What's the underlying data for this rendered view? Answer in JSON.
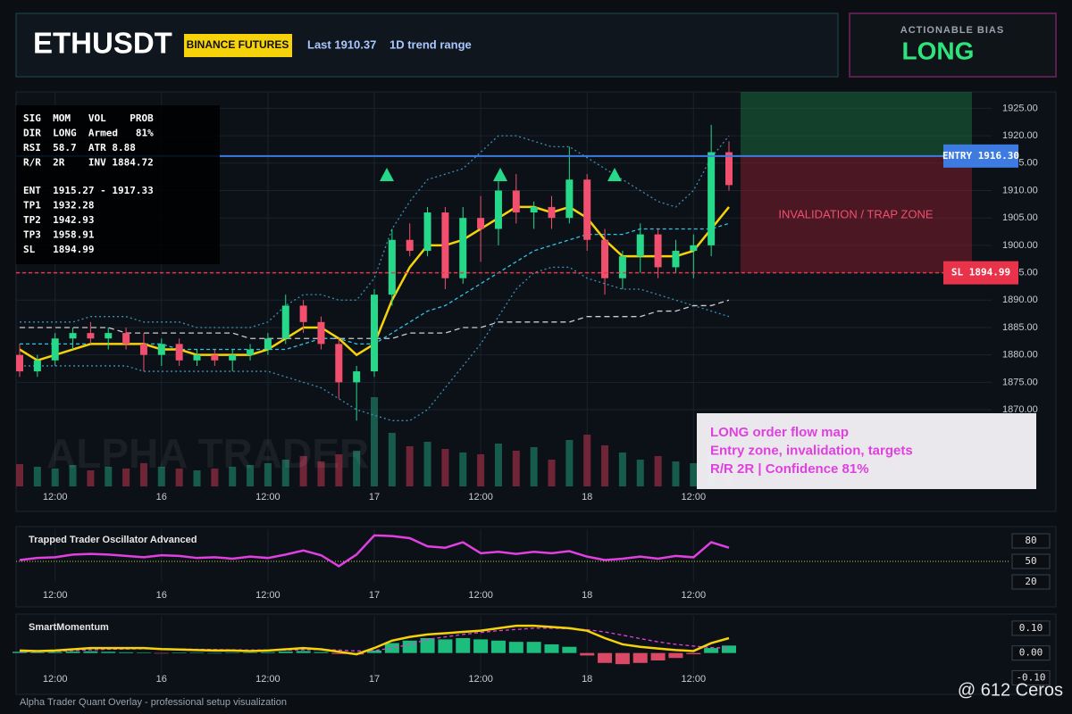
{
  "header": {
    "symbol": "ETHUSDT",
    "exchange": "BINANCE FUTURES",
    "last": "Last 1910.37",
    "range": "1D trend range"
  },
  "bias": {
    "label": "ACTIONABLE BIAS",
    "value": "LONG"
  },
  "info_panel": {
    "stats": [
      "SIG  MOM   VOL    PROB",
      "DIR  LONG  Armed   81%",
      "RSI  58.7  ATR 8.88",
      "R/R  2R    INV 1884.72"
    ],
    "levels": [
      "ENT  1915.27 - 1917.33",
      "TP1  1932.28",
      "TP2  1942.93",
      "TP3  1958.91",
      "SL   1894.99"
    ]
  },
  "chart_data": [
    {
      "type": "candlestick",
      "categories": [
        null,
        null,
        "12:00",
        null,
        null,
        null,
        null,
        null,
        "16",
        null,
        null,
        null,
        null,
        null,
        "12:00",
        null,
        null,
        null,
        null,
        null,
        "17",
        null,
        null,
        null,
        null,
        null,
        "12:00",
        null,
        null,
        null,
        null,
        null,
        "18",
        null,
        null,
        null,
        null,
        null,
        "12:00",
        null,
        null
      ],
      "candles": [
        [
          1880,
          1882,
          1876,
          1877
        ],
        [
          1877,
          1880,
          1876,
          1879
        ],
        [
          1879,
          1884,
          1878,
          1883
        ],
        [
          1883,
          1885,
          1881,
          1884
        ],
        [
          1884,
          1886,
          1882,
          1883
        ],
        [
          1883,
          1885,
          1881,
          1884
        ],
        [
          1884,
          1885,
          1881,
          1882
        ],
        [
          1882,
          1884,
          1877,
          1880
        ],
        [
          1880,
          1883,
          1878,
          1882
        ],
        [
          1882,
          1883,
          1878,
          1879
        ],
        [
          1879,
          1881,
          1878,
          1880
        ],
        [
          1880,
          1881,
          1878,
          1879
        ],
        [
          1879,
          1881,
          1877,
          1880
        ],
        [
          1880,
          1882,
          1879,
          1881
        ],
        [
          1881,
          1884,
          1880,
          1883
        ],
        [
          1883,
          1891,
          1882,
          1889
        ],
        [
          1889,
          1890,
          1884,
          1886
        ],
        [
          1886,
          1887,
          1881,
          1882
        ],
        [
          1882,
          1883,
          1872,
          1875
        ],
        [
          1875,
          1878,
          1868,
          1877
        ],
        [
          1877,
          1892,
          1876,
          1891
        ],
        [
          1891,
          1903,
          1889,
          1901
        ],
        [
          1901,
          1904,
          1898,
          1899
        ],
        [
          1899,
          1907,
          1898,
          1906
        ],
        [
          1906,
          1907,
          1892,
          1894
        ],
        [
          1894,
          1907,
          1893,
          1905
        ],
        [
          1905,
          1909,
          1897,
          1903
        ],
        [
          1903,
          1912,
          1900,
          1910
        ],
        [
          1910,
          1913,
          1904,
          1906
        ],
        [
          1906,
          1908,
          1903,
          1907
        ],
        [
          1907,
          1909,
          1903,
          1905
        ],
        [
          1905,
          1918,
          1904,
          1912
        ],
        [
          1912,
          1913,
          1899,
          1901
        ],
        [
          1901,
          1903,
          1891,
          1894
        ],
        [
          1894,
          1899,
          1892,
          1898
        ],
        [
          1898,
          1904,
          1895,
          1902
        ],
        [
          1902,
          1903,
          1894,
          1896
        ],
        [
          1896,
          1901,
          1895,
          1899
        ],
        [
          1899,
          1902,
          1894,
          1900
        ],
        [
          1900,
          1922,
          1898,
          1917
        ],
        [
          1917,
          1919,
          1910,
          1911
        ]
      ],
      "volume": [
        25,
        22,
        20,
        24,
        18,
        22,
        20,
        26,
        22,
        20,
        18,
        20,
        22,
        24,
        26,
        30,
        34,
        28,
        36,
        40,
        100,
        60,
        45,
        50,
        42,
        38,
        36,
        48,
        40,
        44,
        30,
        52,
        58,
        46,
        38,
        30,
        34,
        28,
        26,
        40,
        36
      ],
      "up_color": "#26d98a",
      "down_color": "#f0506e",
      "lines": [
        {
          "color": "#3a8fb5",
          "dash": "2 3",
          "values": [
            1886,
            1886,
            1886,
            1886,
            1887,
            1887,
            1887,
            1886,
            1886,
            1886,
            1885,
            1885,
            1885,
            1885,
            1886,
            1889,
            1891,
            1891,
            1890,
            1890,
            1894,
            1903,
            1908,
            1912,
            1913,
            1914,
            1917,
            1920,
            1920,
            1919,
            1918,
            1918,
            1916,
            1914,
            1912,
            1910,
            1908,
            1907,
            1910,
            1916,
            1920
          ]
        },
        {
          "color": "#3a8fb5",
          "dash": "2 3",
          "values": [
            1878,
            1878,
            1878,
            1878,
            1878,
            1878,
            1878,
            1877,
            1877,
            1877,
            1877,
            1877,
            1877,
            1877,
            1877,
            1876,
            1875,
            1874,
            1872,
            1870,
            1869,
            1868,
            1868,
            1870,
            1874,
            1878,
            1882,
            1887,
            1892,
            1895,
            1896,
            1896,
            1894,
            1893,
            1892,
            1892,
            1891,
            1890,
            1889,
            1888,
            1887
          ]
        },
        {
          "color": "#c9ccd2",
          "dash": "6 4",
          "values": [
            1885,
            1885,
            1885,
            1885,
            1885,
            1885,
            1884,
            1884,
            1884,
            1884,
            1884,
            1884,
            1884,
            1883,
            1883,
            1883,
            1883,
            1883,
            1883,
            1883,
            1883,
            1883,
            1884,
            1884,
            1884,
            1885,
            1885,
            1886,
            1886,
            1886,
            1886,
            1886,
            1887,
            1887,
            1887,
            1887,
            1888,
            1888,
            1889,
            1889,
            1890
          ]
        },
        {
          "color": "#2ec4e8",
          "dash": "4 3",
          "values": [
            1882,
            1882,
            1882,
            1882,
            1882,
            1882,
            1882,
            1882,
            1882,
            1881,
            1881,
            1881,
            1881,
            1881,
            1881,
            1881,
            1882,
            1883,
            1883,
            1882,
            1882,
            1884,
            1886,
            1888,
            1889,
            1891,
            1893,
            1895,
            1897,
            1899,
            1900,
            1901,
            1902,
            1902,
            1902,
            1903,
            1903,
            1903,
            1903,
            1903,
            1904
          ]
        },
        {
          "color": "#f5d20a",
          "dash": "none",
          "values": [
            1881,
            1879,
            1880,
            1881,
            1882,
            1882,
            1882,
            1882,
            1881,
            1881,
            1880,
            1880,
            1880,
            1880,
            1881,
            1883,
            1885,
            1885,
            1883,
            1880,
            1882,
            1890,
            1896,
            1900,
            1900,
            1901,
            1903,
            1905,
            1907,
            1907,
            1906,
            1907,
            1905,
            1901,
            1898,
            1898,
            1898,
            1898,
            1899,
            1903,
            1907
          ]
        }
      ],
      "ylim": [
        1856,
        1928
      ],
      "yticks": [
        {
          "value": 1870,
          "label": "1870.00"
        },
        {
          "value": 1875,
          "label": "1875.00"
        },
        {
          "value": 1880,
          "label": "1880.00"
        },
        {
          "value": 1885,
          "label": "1885.00"
        },
        {
          "value": 1890,
          "label": "1890.00"
        },
        {
          "value": 1895,
          "label": "1895.00"
        },
        {
          "value": 1900,
          "label": "1900.00"
        },
        {
          "value": 1905,
          "label": "1905.00"
        },
        {
          "value": 1910,
          "label": "1910.00"
        },
        {
          "value": 1915,
          "label": "1915.00"
        },
        {
          "value": 1920,
          "label": "1920.00"
        },
        {
          "value": 1925,
          "label": "1925.00"
        }
      ],
      "grid": true,
      "levels": [
        {
          "label": "ENTRY 1916.30",
          "value": 1916.3,
          "color": "#3d7be0"
        },
        {
          "label": "SL 1894.99",
          "value": 1894.99,
          "color": "#e8334a"
        }
      ],
      "zone_label": "INVALIDATION / TRAP ZONE"
    },
    {
      "type": "line",
      "title": "Trapped Trader Oscillator Advanced",
      "color": "#e040e0",
      "values": [
        52,
        55,
        56,
        60,
        61,
        60,
        58,
        56,
        59,
        58,
        55,
        56,
        54,
        57,
        55,
        60,
        66,
        59,
        43,
        60,
        88,
        87,
        84,
        72,
        70,
        78,
        62,
        64,
        61,
        64,
        62,
        65,
        57,
        52,
        54,
        57,
        54,
        58,
        56,
        78,
        70
      ],
      "ylim": [
        20,
        97
      ],
      "yticks": [
        20,
        50,
        80
      ],
      "ref_line": {
        "value": 50,
        "color": "#c8d44a"
      }
    },
    {
      "type": "bar",
      "title": "SmartMomentum",
      "up_color": "#1fd08a",
      "down_color": "#f0506e",
      "values": [
        0.005,
        0.003,
        0.004,
        0.006,
        0.007,
        0.005,
        0.003,
        0.002,
        -0.002,
        0.002,
        0.001,
        0.0,
        0.001,
        0.002,
        0.003,
        0.006,
        0.008,
        0.004,
        -0.004,
        -0.006,
        0.01,
        0.04,
        0.05,
        0.06,
        0.055,
        0.06,
        0.055,
        0.05,
        0.045,
        0.045,
        0.035,
        0.025,
        -0.01,
        -0.04,
        -0.045,
        -0.04,
        -0.03,
        -0.02,
        -0.005,
        0.02,
        0.03
      ],
      "lines": [
        {
          "color": "#e040e0",
          "dash": "4 3",
          "values": [
            0.005,
            0.005,
            0.007,
            0.01,
            0.013,
            0.015,
            0.016,
            0.017,
            0.017,
            0.016,
            0.015,
            0.014,
            0.013,
            0.012,
            0.012,
            0.012,
            0.013,
            0.014,
            0.012,
            0.008,
            0.01,
            0.02,
            0.035,
            0.055,
            0.065,
            0.075,
            0.083,
            0.09,
            0.095,
            0.1,
            0.1,
            0.098,
            0.094,
            0.085,
            0.072,
            0.058,
            0.045,
            0.035,
            0.028,
            0.022,
            0.02
          ]
        },
        {
          "color": "#f5d20a",
          "dash": "none",
          "values": [
            0.01,
            0.008,
            0.01,
            0.015,
            0.02,
            0.02,
            0.02,
            0.02,
            0.016,
            0.014,
            0.012,
            0.01,
            0.01,
            0.008,
            0.01,
            0.015,
            0.02,
            0.015,
            0.005,
            -0.005,
            0.02,
            0.05,
            0.065,
            0.075,
            0.08,
            0.085,
            0.09,
            0.1,
            0.11,
            0.11,
            0.105,
            0.1,
            0.09,
            0.06,
            0.035,
            0.025,
            0.018,
            0.012,
            0.008,
            0.04,
            0.06
          ]
        }
      ],
      "ylim": [
        -0.12,
        0.15
      ],
      "yticks": [
        {
          "value": -0.1,
          "label": "-0.10"
        },
        {
          "value": 0,
          "label": "0.00"
        },
        {
          "value": 0.1,
          "label": "0.10"
        }
      ]
    }
  ],
  "overlay_note": [
    "LONG order flow map",
    "Entry zone, invalidation, targets",
    "R/R 2R | Confidence 81%"
  ],
  "watermark": "ALPHA TRADER",
  "footer": "Alpha Trader Quant Overlay - professional setup visualization",
  "credit": "@ 612 Ceros"
}
